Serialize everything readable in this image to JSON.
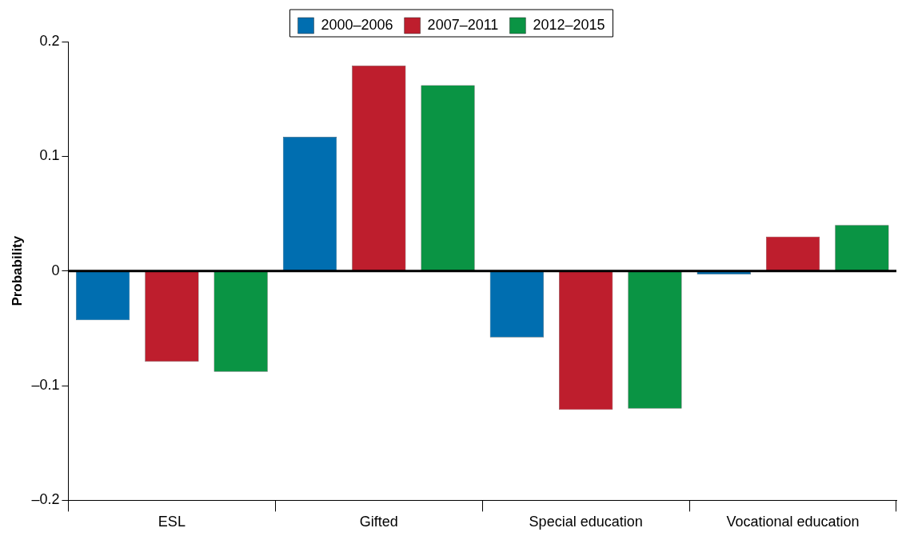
{
  "chart_data": {
    "type": "bar",
    "ylabel": "Probability",
    "categories": [
      "ESL",
      "Gifted",
      "Special education",
      "Vocational education"
    ],
    "series": [
      {
        "name": "2000–2006",
        "color": "#006eb0",
        "values": [
          -0.043,
          0.117,
          -0.058,
          -0.003
        ]
      },
      {
        "name": "2007–2011",
        "color": "#be1e2d",
        "values": [
          -0.079,
          0.179,
          -0.121,
          0.03
        ]
      },
      {
        "name": "2012–2015",
        "color": "#0a9444",
        "values": [
          -0.088,
          0.162,
          -0.12,
          0.04
        ]
      }
    ],
    "ylim": [
      -0.2,
      0.2
    ],
    "yticks": [
      {
        "value": -0.2,
        "label": "–0.2"
      },
      {
        "value": -0.1,
        "label": "–0.1"
      },
      0,
      0.1,
      0.2
    ],
    "ref_lines": [
      {
        "axis": "y",
        "value": 0,
        "color": "#000000"
      }
    ],
    "grid": false,
    "legend": "top"
  }
}
